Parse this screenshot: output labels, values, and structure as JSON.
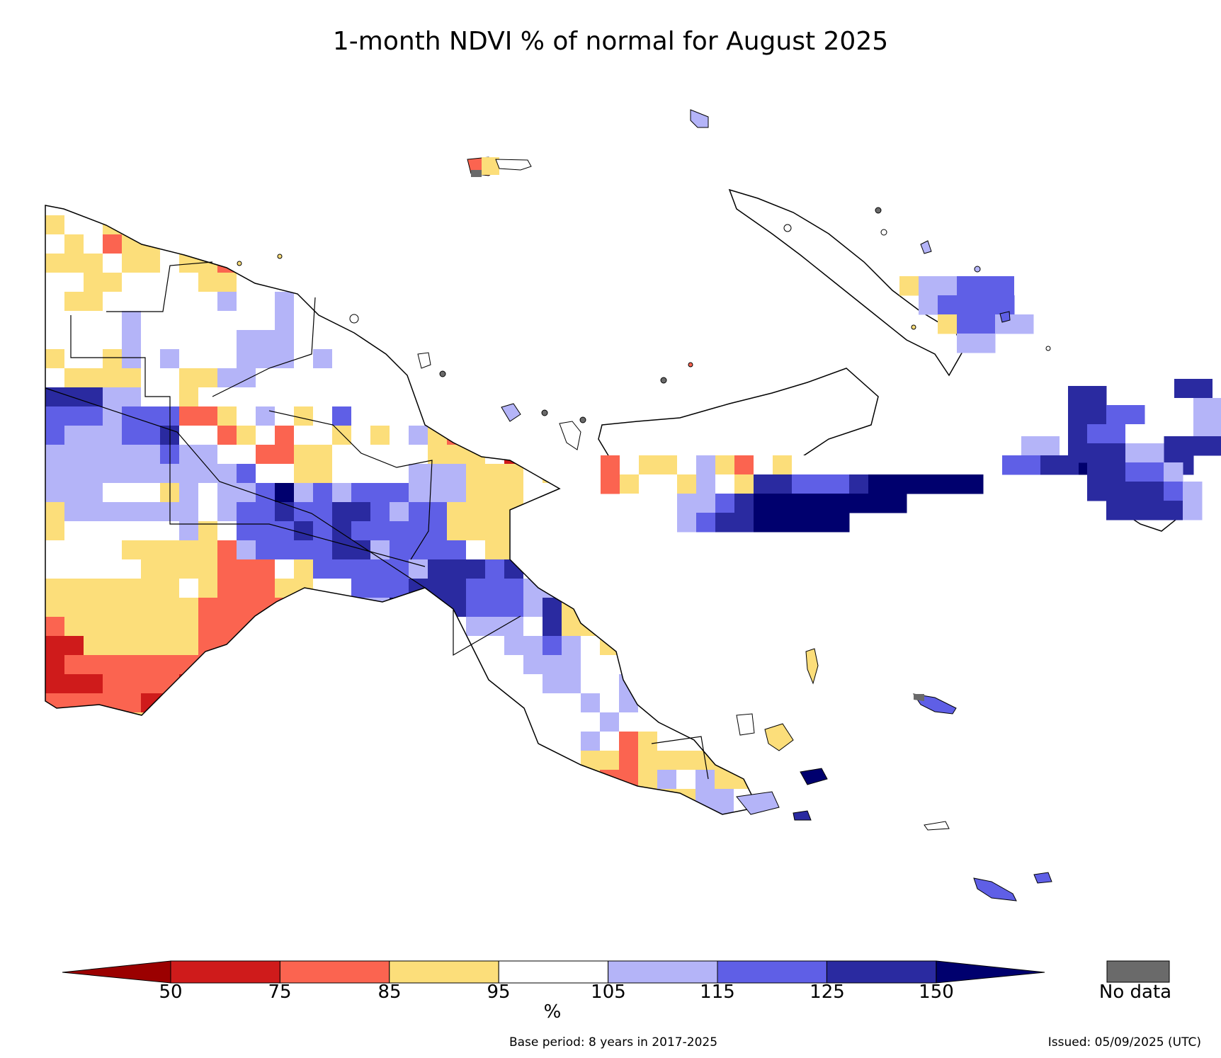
{
  "title": "1-month NDVI % of normal for August 2025",
  "legend": {
    "ticks": [
      "50",
      "75",
      "85",
      "95",
      "105",
      "115",
      "125",
      "150"
    ],
    "unit": "%",
    "colors": {
      "below50": "#9b0000",
      "c50_75": "#cf1b1b",
      "c75_85": "#fb6450",
      "c85_95": "#fcde7a",
      "c95_105": "#ffffff",
      "c105_115": "#b4b4f8",
      "c115_125": "#5f5fe6",
      "c125_150": "#2a2aa0",
      "above150": "#00006e",
      "nodata": "#6a6a6a"
    },
    "nodata_label": "No data"
  },
  "footer": {
    "base_period": "Base period: 8 years in 2017-2025",
    "issued": "Issued: 05/09/2025 (UTC)"
  }
}
